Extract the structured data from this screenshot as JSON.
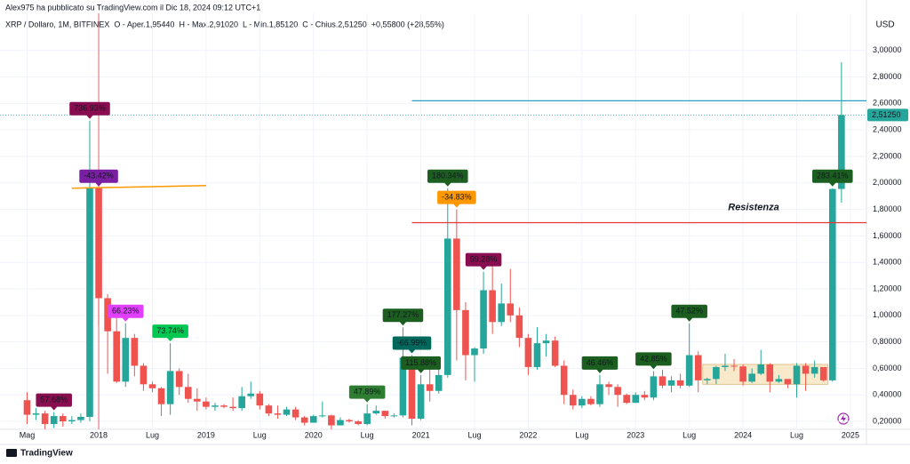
{
  "header": {
    "author": "Alex975 ha pubblicato su TradingView.com il Dic 18, 2024 09:12 UTC+1",
    "symbol": "XRP / Dollaro, 1M, BITFINEX",
    "fields": [
      {
        "label": "O - Aper.",
        "value": "1,95440"
      },
      {
        "label": "H - Max.",
        "value": "2,91020"
      },
      {
        "label": "L - Min.",
        "value": "1,85120"
      },
      {
        "label": "C - Chius.",
        "value": "2,51250"
      }
    ],
    "change": "+0,55800 (+28,55%)"
  },
  "footer": {
    "logo": "TradingView"
  },
  "chart_data": {
    "type": "candlestick",
    "y_axis_label": "USD",
    "categories": [
      "2017-05",
      "2017-06",
      "2017-07",
      "2017-08",
      "2017-09",
      "2017-10",
      "2017-11",
      "2017-12",
      "2018-01",
      "2018-02",
      "2018-03",
      "2018-04",
      "2018-05",
      "2018-06",
      "2018-07",
      "2018-08",
      "2018-09",
      "2018-10",
      "2018-11",
      "2018-12",
      "2019-01",
      "2019-02",
      "2019-03",
      "2019-04",
      "2019-05",
      "2019-06",
      "2019-07",
      "2019-08",
      "2019-09",
      "2019-10",
      "2019-11",
      "2019-12",
      "2020-01",
      "2020-02",
      "2020-03",
      "2020-04",
      "2020-05",
      "2020-06",
      "2020-07",
      "2020-08",
      "2020-09",
      "2020-10",
      "2020-11",
      "2020-12",
      "2021-01",
      "2021-02",
      "2021-03",
      "2021-04",
      "2021-05",
      "2021-06",
      "2021-07",
      "2021-08",
      "2021-09",
      "2021-10",
      "2021-11",
      "2021-12",
      "2022-01",
      "2022-02",
      "2022-03",
      "2022-04",
      "2022-05",
      "2022-06",
      "2022-07",
      "2022-08",
      "2022-09",
      "2022-10",
      "2022-11",
      "2022-12",
      "2023-01",
      "2023-02",
      "2023-03",
      "2023-04",
      "2023-05",
      "2023-06",
      "2023-07",
      "2023-08",
      "2023-09",
      "2023-10",
      "2023-11",
      "2023-12",
      "2024-01",
      "2024-02",
      "2024-03",
      "2024-04",
      "2024-05",
      "2024-06",
      "2024-07",
      "2024-08",
      "2024-09",
      "2024-10",
      "2024-11",
      "2024-12"
    ],
    "open": [
      0.36,
      0.25,
      0.26,
      0.18,
      0.24,
      0.2,
      0.21,
      0.234,
      1.96,
      1.13,
      0.88,
      0.5,
      0.83,
      0.62,
      0.48,
      0.45,
      0.33,
      0.58,
      0.46,
      0.37,
      0.35,
      0.31,
      0.32,
      0.31,
      0.3,
      0.39,
      0.41,
      0.32,
      0.26,
      0.25,
      0.29,
      0.23,
      0.19,
      0.24,
      0.245,
      0.17,
      0.21,
      0.2,
      0.18,
      0.26,
      0.28,
      0.24,
      0.245,
      0.68,
      0.22,
      0.48,
      0.43,
      0.55,
      1.58,
      1.04,
      0.7,
      0.75,
      1.19,
      0.95,
      1.09,
      1.0,
      0.83,
      0.61,
      0.79,
      0.81,
      0.62,
      0.4,
      0.32,
      0.37,
      0.33,
      0.48,
      0.46,
      0.4,
      0.34,
      0.4,
      0.38,
      0.54,
      0.47,
      0.51,
      0.47,
      0.7,
      0.51,
      0.52,
      0.61,
      0.62,
      0.615,
      0.5,
      0.56,
      0.63,
      0.5,
      0.52,
      0.48,
      0.62,
      0.56,
      0.61,
      0.51,
      1.9544
    ],
    "high": [
      0.42,
      0.3,
      0.28,
      0.27,
      0.26,
      0.24,
      0.26,
      2.47,
      1.96,
      1.16,
      1.0,
      0.94,
      0.86,
      0.64,
      0.5,
      0.46,
      0.79,
      0.6,
      0.56,
      0.45,
      0.38,
      0.34,
      0.33,
      0.38,
      0.46,
      0.5,
      0.43,
      0.33,
      0.32,
      0.31,
      0.31,
      0.24,
      0.25,
      0.35,
      0.25,
      0.23,
      0.22,
      0.21,
      0.33,
      0.32,
      0.28,
      0.26,
      0.91,
      0.7,
      0.55,
      0.65,
      0.63,
      1.96,
      1.8,
      1.1,
      0.76,
      1.33,
      1.41,
      1.24,
      1.35,
      1.06,
      0.86,
      0.91,
      0.86,
      0.84,
      0.66,
      0.44,
      0.39,
      0.39,
      0.55,
      0.5,
      0.48,
      0.41,
      0.42,
      0.43,
      0.58,
      0.59,
      0.54,
      0.56,
      0.94,
      0.73,
      0.53,
      0.62,
      0.71,
      0.67,
      0.63,
      0.6,
      0.74,
      0.64,
      0.55,
      0.52,
      0.64,
      0.64,
      0.66,
      0.61,
      1.96,
      2.9102
    ],
    "low": [
      0.18,
      0.21,
      0.13,
      0.15,
      0.16,
      0.18,
      0.19,
      0.2,
      0.92,
      0.56,
      0.49,
      0.46,
      0.54,
      0.43,
      0.42,
      0.24,
      0.25,
      0.4,
      0.34,
      0.28,
      0.29,
      0.28,
      0.3,
      0.28,
      0.28,
      0.37,
      0.29,
      0.24,
      0.22,
      0.24,
      0.21,
      0.17,
      0.19,
      0.23,
      0.11,
      0.17,
      0.19,
      0.17,
      0.17,
      0.25,
      0.22,
      0.23,
      0.23,
      0.17,
      0.21,
      0.35,
      0.41,
      0.53,
      0.66,
      0.51,
      0.5,
      0.71,
      0.86,
      0.92,
      0.95,
      0.76,
      0.55,
      0.59,
      0.69,
      0.61,
      0.33,
      0.29,
      0.3,
      0.32,
      0.31,
      0.4,
      0.31,
      0.33,
      0.34,
      0.36,
      0.36,
      0.45,
      0.42,
      0.45,
      0.46,
      0.42,
      0.48,
      0.48,
      0.58,
      0.58,
      0.47,
      0.49,
      0.55,
      0.42,
      0.49,
      0.45,
      0.38,
      0.43,
      0.53,
      0.5,
      0.5,
      1.8512
    ],
    "close": [
      0.25,
      0.26,
      0.18,
      0.24,
      0.2,
      0.21,
      0.234,
      1.96,
      1.13,
      0.88,
      0.5,
      0.83,
      0.62,
      0.48,
      0.45,
      0.33,
      0.58,
      0.46,
      0.37,
      0.35,
      0.31,
      0.32,
      0.31,
      0.3,
      0.39,
      0.41,
      0.32,
      0.26,
      0.25,
      0.29,
      0.23,
      0.19,
      0.24,
      0.245,
      0.17,
      0.21,
      0.2,
      0.18,
      0.26,
      0.28,
      0.24,
      0.245,
      0.68,
      0.22,
      0.48,
      0.43,
      0.55,
      1.58,
      1.04,
      0.7,
      0.75,
      1.19,
      0.95,
      1.09,
      1.0,
      0.83,
      0.61,
      0.79,
      0.81,
      0.62,
      0.4,
      0.32,
      0.37,
      0.33,
      0.48,
      0.46,
      0.4,
      0.34,
      0.4,
      0.38,
      0.54,
      0.47,
      0.51,
      0.47,
      0.7,
      0.51,
      0.52,
      0.61,
      0.62,
      0.615,
      0.5,
      0.56,
      0.63,
      0.5,
      0.52,
      0.48,
      0.62,
      0.56,
      0.61,
      0.51,
      1.9544,
      2.5125
    ],
    "up_color": "#26a69a",
    "down_color": "#ef5350",
    "ylim": [
      0.14,
      3.28
    ],
    "yticks": [
      {
        "value": 0.2,
        "label": "0,20000"
      },
      {
        "value": 0.4,
        "label": "0,40000"
      },
      {
        "value": 0.6,
        "label": "0,60000"
      },
      {
        "value": 0.8,
        "label": "0,80000"
      },
      {
        "value": 1.0,
        "label": "1,00000"
      },
      {
        "value": 1.2,
        "label": "1,20000"
      },
      {
        "value": 1.4,
        "label": "1,40000"
      },
      {
        "value": 1.6,
        "label": "1,60000"
      },
      {
        "value": 1.8,
        "label": "1,80000"
      },
      {
        "value": 2.0,
        "label": "2,00000"
      },
      {
        "value": 2.2,
        "label": "2,20000"
      },
      {
        "value": 2.4,
        "label": "2,40000"
      },
      {
        "value": 2.6,
        "label": "2,60000"
      },
      {
        "value": 2.8,
        "label": "2,80000"
      },
      {
        "value": 3.0,
        "label": "3,00000"
      }
    ],
    "xticks": [
      {
        "value": "2017-05",
        "label": "Mag"
      },
      {
        "value": "2018-01",
        "label": "2018"
      },
      {
        "value": "2018-07",
        "label": "Lug"
      },
      {
        "value": "2019-01",
        "label": "2019"
      },
      {
        "value": "2019-07",
        "label": "Lug"
      },
      {
        "value": "2020-01",
        "label": "2020"
      },
      {
        "value": "2020-07",
        "label": "Lug"
      },
      {
        "value": "2021-01",
        "label": "2021"
      },
      {
        "value": "2021-07",
        "label": "Lug"
      },
      {
        "value": "2022-01",
        "label": "2022"
      },
      {
        "value": "2022-07",
        "label": "Lug"
      },
      {
        "value": "2023-01",
        "label": "2023"
      },
      {
        "value": "2023-07",
        "label": "Lug"
      },
      {
        "value": "2024-01",
        "label": "2024"
      },
      {
        "value": "2024-07",
        "label": "Lug"
      },
      {
        "value": "2025-01",
        "label": "2025"
      }
    ],
    "grid": true,
    "last_price": {
      "value": 2.5125,
      "label": "2,51250"
    },
    "annotations": [
      {
        "at": "2017-08",
        "text": "57.68%",
        "color": "#880e4f"
      },
      {
        "at": "2017-12",
        "text": "736.93%",
        "color": "#880e4f"
      },
      {
        "at": "2018-01",
        "text": "-43.42%",
        "color": "#7b1fa2"
      },
      {
        "at": "2018-04",
        "text": "66.23%",
        "color": "#e040fb"
      },
      {
        "at": "2018-09",
        "text": "73.74%",
        "color": "#00c853"
      },
      {
        "at": "2020-07",
        "text": "47.89%",
        "color": "#2e7d32"
      },
      {
        "at": "2020-11",
        "text": "177.27%",
        "color": "#1b5e20"
      },
      {
        "at": "2020-12",
        "text": "-66.99%",
        "color": "#00695c"
      },
      {
        "at": "2021-01",
        "text": "115.88%",
        "color": "#1b5e20"
      },
      {
        "at": "2021-04",
        "text": "180.34%",
        "color": "#1b5e20"
      },
      {
        "at": "2021-05",
        "text": "-34.83%",
        "color": "#ff9800"
      },
      {
        "at": "2021-08",
        "text": "59.28%",
        "color": "#880e4f"
      },
      {
        "at": "2022-09",
        "text": "46.46%",
        "color": "#1b5e20"
      },
      {
        "at": "2023-03",
        "text": "42.85%",
        "color": "#1b5e20"
      },
      {
        "at": "2023-07",
        "text": "47.52%",
        "color": "#1b5e20"
      },
      {
        "at": "2024-11",
        "text": "283.41%",
        "color": "#1b5e20"
      }
    ],
    "hlines": [
      {
        "value": 2.62,
        "from": "2020-12",
        "color": "#2a9fc4"
      },
      {
        "value": 1.7,
        "from": "2020-12",
        "color": "#e53935",
        "label": "Resistenza"
      }
    ],
    "trendline": {
      "from": "2017-10",
      "to": "2019-01",
      "start": 1.96,
      "end": 1.98,
      "color": "#ff9800"
    },
    "range_box": {
      "from": "2023-09",
      "to": "2024-10",
      "low": 0.48,
      "high": 0.63,
      "color": "#f5e3bd"
    },
    "vline": {
      "at": "2018-01",
      "color": "#f23645"
    }
  }
}
